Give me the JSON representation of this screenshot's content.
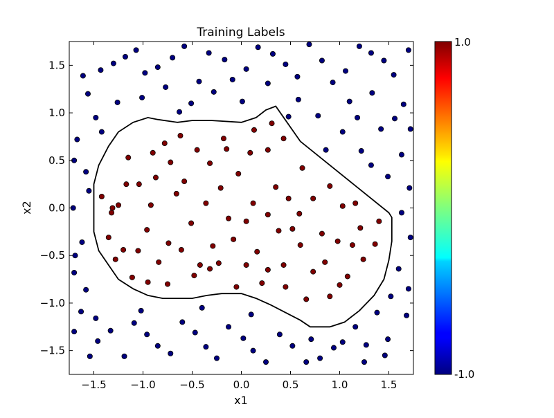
{
  "chart_data": {
    "type": "scatter",
    "title": "Training Labels",
    "xlabel": "x1",
    "ylabel": "x2",
    "xlim": [
      -1.75,
      1.75
    ],
    "ylim": [
      -1.75,
      1.75
    ],
    "xticks": [
      -1.5,
      -1.0,
      -0.5,
      0.0,
      0.5,
      1.0,
      1.5
    ],
    "xtick_labels": [
      "−1.5",
      "−1.0",
      "−0.5",
      "0.0",
      "0.5",
      "1.0",
      "1.5"
    ],
    "yticks": [
      1.5,
      1.0,
      0.5,
      0.0,
      -0.5,
      -1.0,
      -1.5
    ],
    "ytick_labels": [
      "1.5",
      "1.0",
      "0.5",
      "0.0",
      "−0.5",
      "−1.0",
      "−1.5"
    ],
    "grid": false,
    "colorbar": {
      "colormap": "jet",
      "min": -1.0,
      "max": 1.0,
      "min_label": "-1.0",
      "max_label": "1.0"
    },
    "classes": [
      {
        "label_value": 1.0,
        "color": "#800000"
      },
      {
        "label_value": -1.0,
        "color": "#000080"
      }
    ],
    "boundary": [
      [
        -1.5,
        0.05
      ],
      [
        -1.5,
        -0.25
      ],
      [
        -1.45,
        -0.45
      ],
      [
        -1.35,
        -0.6
      ],
      [
        -1.25,
        -0.75
      ],
      [
        -1.1,
        -0.85
      ],
      [
        -0.95,
        -0.92
      ],
      [
        -0.8,
        -0.95
      ],
      [
        -0.5,
        -0.95
      ],
      [
        -0.35,
        -0.92
      ],
      [
        -0.2,
        -0.9
      ],
      [
        0.0,
        -0.9
      ],
      [
        0.15,
        -0.95
      ],
      [
        0.3,
        -1.02
      ],
      [
        0.45,
        -1.1
      ],
      [
        0.6,
        -1.18
      ],
      [
        0.7,
        -1.25
      ],
      [
        0.9,
        -1.25
      ],
      [
        1.05,
        -1.2
      ],
      [
        1.2,
        -1.08
      ],
      [
        1.35,
        -0.92
      ],
      [
        1.45,
        -0.75
      ],
      [
        1.5,
        -0.55
      ],
      [
        1.53,
        -0.35
      ],
      [
        1.53,
        -0.1
      ],
      [
        1.5,
        -0.05
      ],
      [
        0.6,
        0.7
      ],
      [
        0.35,
        1.07
      ],
      [
        0.25,
        1.03
      ],
      [
        0.15,
        0.95
      ],
      [
        0.0,
        0.9
      ],
      [
        -0.3,
        0.92
      ],
      [
        -0.5,
        0.92
      ],
      [
        -0.65,
        0.9
      ],
      [
        -0.85,
        0.93
      ],
      [
        -0.95,
        0.95
      ],
      [
        -1.1,
        0.9
      ],
      [
        -1.25,
        0.8
      ],
      [
        -1.35,
        0.65
      ],
      [
        -1.45,
        0.45
      ],
      [
        -1.5,
        0.25
      ],
      [
        -1.5,
        0.05
      ]
    ],
    "points": [
      [
        -1.31,
        0.0,
        1
      ],
      [
        -1.42,
        0.12,
        1
      ],
      [
        -1.35,
        -0.31,
        1
      ],
      [
        -1.28,
        -0.54,
        1
      ],
      [
        -1.11,
        -0.73,
        1
      ],
      [
        -0.95,
        -0.78,
        1
      ],
      [
        -0.75,
        -0.8,
        1
      ],
      [
        -0.48,
        -0.71,
        1
      ],
      [
        -0.23,
        -0.58,
        1
      ],
      [
        0.05,
        -0.6,
        1
      ],
      [
        0.27,
        -0.65,
        1
      ],
      [
        0.45,
        -0.83,
        1
      ],
      [
        0.66,
        -0.96,
        1
      ],
      [
        0.9,
        -0.93,
        1
      ],
      [
        1.08,
        -0.72,
        1
      ],
      [
        1.24,
        -0.54,
        1
      ],
      [
        1.36,
        -0.38,
        1
      ],
      [
        1.4,
        -0.14,
        1
      ],
      [
        1.16,
        0.05,
        1
      ],
      [
        0.9,
        0.23,
        1
      ],
      [
        0.62,
        0.42,
        1
      ],
      [
        0.43,
        0.73,
        1
      ],
      [
        0.31,
        0.89,
        1
      ],
      [
        0.13,
        0.82,
        1
      ],
      [
        -0.15,
        0.62,
        1
      ],
      [
        -0.45,
        0.61,
        1
      ],
      [
        -0.78,
        0.68,
        1
      ],
      [
        -1.15,
        0.53,
        1
      ],
      [
        -1.04,
        0.25,
        1
      ],
      [
        -0.87,
        0.32,
        1
      ],
      [
        -0.58,
        0.28,
        1
      ],
      [
        -0.36,
        0.05,
        1
      ],
      [
        -0.13,
        -0.11,
        1
      ],
      [
        0.12,
        0.05,
        1
      ],
      [
        0.35,
        0.22,
        1
      ],
      [
        0.59,
        -0.06,
        1
      ],
      [
        0.82,
        -0.27,
        1
      ],
      [
        0.98,
        -0.35,
        1
      ],
      [
        0.6,
        -0.39,
        1
      ],
      [
        0.38,
        -0.24,
        1
      ],
      [
        0.16,
        -0.46,
        1
      ],
      [
        -0.08,
        -0.33,
        1
      ],
      [
        -0.29,
        -0.4,
        1
      ],
      [
        -0.51,
        -0.16,
        1
      ],
      [
        -0.74,
        -0.37,
        1
      ],
      [
        -0.96,
        -0.23,
        1
      ],
      [
        -1.2,
        -0.44,
        1
      ],
      [
        -1.25,
        0.03,
        1
      ],
      [
        -1.17,
        0.25,
        1
      ],
      [
        -0.9,
        0.58,
        1
      ],
      [
        -0.62,
        0.76,
        1
      ],
      [
        -0.32,
        0.47,
        1
      ],
      [
        -0.03,
        0.36,
        1
      ],
      [
        0.27,
        0.61,
        1
      ],
      [
        0.48,
        0.1,
        1
      ],
      [
        0.73,
        0.1,
        1
      ],
      [
        1.03,
        0.02,
        1
      ],
      [
        1.21,
        -0.21,
        1
      ],
      [
        1.13,
        -0.39,
        1
      ],
      [
        0.85,
        -0.57,
        1
      ],
      [
        0.43,
        -0.6,
        1
      ],
      [
        0.21,
        -0.79,
        1
      ],
      [
        -0.05,
        -0.83,
        1
      ],
      [
        -0.42,
        -0.6,
        1
      ],
      [
        -0.61,
        -0.44,
        1
      ],
      [
        -0.84,
        -0.57,
        1
      ],
      [
        -1.05,
        -0.45,
        1
      ],
      [
        -0.92,
        0.03,
        1
      ],
      [
        -0.66,
        0.15,
        1
      ],
      [
        -0.21,
        0.21,
        1
      ],
      [
        0.05,
        -0.14,
        1
      ],
      [
        0.27,
        -0.07,
        1
      ],
      [
        0.52,
        -0.22,
        1
      ],
      [
        0.73,
        -0.67,
        1
      ],
      [
        1.0,
        -0.81,
        1
      ],
      [
        -0.32,
        -0.64,
        1
      ],
      [
        -0.18,
        0.73,
        1
      ],
      [
        0.09,
        0.58,
        1
      ],
      [
        -0.72,
        0.48,
        1
      ],
      [
        -1.32,
        -0.05,
        1
      ],
      [
        -1.56,
        1.2,
        -1
      ],
      [
        -1.43,
        1.45,
        -1
      ],
      [
        -1.18,
        1.59,
        -1
      ],
      [
        -0.98,
        1.42,
        -1
      ],
      [
        -0.7,
        1.58,
        -1
      ],
      [
        -0.43,
        1.33,
        -1
      ],
      [
        -0.17,
        1.56,
        -1
      ],
      [
        0.05,
        1.46,
        -1
      ],
      [
        0.32,
        1.62,
        -1
      ],
      [
        0.57,
        1.38,
        -1
      ],
      [
        0.82,
        1.55,
        -1
      ],
      [
        1.06,
        1.44,
        -1
      ],
      [
        1.32,
        1.63,
        -1
      ],
      [
        1.55,
        1.4,
        -1
      ],
      [
        1.65,
        1.09,
        -1
      ],
      [
        1.42,
        0.83,
        -1
      ],
      [
        1.22,
        0.6,
        -1
      ],
      [
        1.63,
        0.56,
        -1
      ],
      [
        1.71,
        0.21,
        -1
      ],
      [
        1.63,
        -0.05,
        -1
      ],
      [
        1.72,
        -0.31,
        -1
      ],
      [
        1.6,
        -0.64,
        -1
      ],
      [
        1.52,
        -0.93,
        -1
      ],
      [
        1.68,
        -1.13,
        -1
      ],
      [
        1.49,
        -1.38,
        -1
      ],
      [
        1.25,
        -1.62,
        -1
      ],
      [
        1.03,
        -1.41,
        -1
      ],
      [
        0.8,
        -1.58,
        -1
      ],
      [
        0.52,
        -1.45,
        -1
      ],
      [
        0.25,
        -1.62,
        -1
      ],
      [
        0.02,
        -1.37,
        -1
      ],
      [
        -0.25,
        -1.58,
        -1
      ],
      [
        -0.47,
        -1.31,
        -1
      ],
      [
        -0.72,
        -1.53,
        -1
      ],
      [
        -0.96,
        -1.33,
        -1
      ],
      [
        -1.19,
        -1.56,
        -1
      ],
      [
        -1.46,
        -1.4,
        -1
      ],
      [
        -1.63,
        -1.09,
        -1
      ],
      [
        -1.7,
        -0.68,
        -1
      ],
      [
        -1.62,
        -0.36,
        -1
      ],
      [
        -1.71,
        0.0,
        -1
      ],
      [
        -1.58,
        0.38,
        -1
      ],
      [
        -1.67,
        0.72,
        -1
      ],
      [
        -1.48,
        0.95,
        -1
      ],
      [
        -1.26,
        1.11,
        -1
      ],
      [
        -1.01,
        1.16,
        -1
      ],
      [
        -0.77,
        1.27,
        -1
      ],
      [
        -0.51,
        1.1,
        -1
      ],
      [
        -0.28,
        1.22,
        -1
      ],
      [
        0.01,
        1.12,
        -1
      ],
      [
        0.27,
        1.31,
        -1
      ],
      [
        0.58,
        1.14,
        -1
      ],
      [
        0.78,
        0.97,
        -1
      ],
      [
        1.03,
        0.8,
        -1
      ],
      [
        0.86,
        0.61,
        -1
      ],
      [
        1.1,
        1.12,
        -1
      ],
      [
        1.33,
        1.21,
        -1
      ],
      [
        1.56,
        0.94,
        -1
      ],
      [
        1.49,
        0.33,
        -1
      ],
      [
        1.38,
        -1.1,
        -1
      ],
      [
        1.16,
        -1.25,
        -1
      ],
      [
        0.94,
        -1.47,
        -1
      ],
      [
        0.66,
        -1.62,
        -1
      ],
      [
        0.39,
        -1.33,
        -1
      ],
      [
        0.12,
        -1.5,
        -1
      ],
      [
        -0.13,
        -1.25,
        -1
      ],
      [
        -0.36,
        -1.46,
        -1
      ],
      [
        -0.6,
        -1.2,
        -1
      ],
      [
        -0.85,
        -1.45,
        -1
      ],
      [
        -1.09,
        -1.21,
        -1
      ],
      [
        -1.33,
        -1.29,
        -1
      ],
      [
        -1.54,
        -1.56,
        -1
      ],
      [
        -1.7,
        -1.3,
        -1
      ],
      [
        -1.58,
        -0.86,
        -1
      ],
      [
        -1.69,
        -0.5,
        -1
      ],
      [
        -1.55,
        0.18,
        -1
      ],
      [
        -1.7,
        0.5,
        -1
      ],
      [
        -1.61,
        1.39,
        -1
      ],
      [
        -1.3,
        1.52,
        -1
      ],
      [
        -1.07,
        1.66,
        -1
      ],
      [
        -0.85,
        1.48,
        -1
      ],
      [
        -0.58,
        1.7,
        -1
      ],
      [
        -0.33,
        1.63,
        -1
      ],
      [
        -0.09,
        1.35,
        -1
      ],
      [
        0.17,
        1.69,
        -1
      ],
      [
        0.45,
        1.51,
        -1
      ],
      [
        0.69,
        1.72,
        -1
      ],
      [
        0.93,
        1.32,
        -1
      ],
      [
        1.2,
        1.7,
        -1
      ],
      [
        1.45,
        1.55,
        -1
      ],
      [
        1.7,
        1.66,
        -1
      ],
      [
        1.72,
        0.83,
        -1
      ],
      [
        1.32,
        0.45,
        -1
      ],
      [
        1.7,
        -0.85,
        -1
      ],
      [
        1.27,
        -1.44,
        -1
      ],
      [
        -1.42,
        0.8,
        -1
      ],
      [
        -0.63,
        1.01,
        -1
      ],
      [
        0.48,
        0.96,
        -1
      ],
      [
        1.18,
        0.95,
        -1
      ],
      [
        -0.4,
        -1.05,
        -1
      ],
      [
        0.1,
        -1.12,
        -1
      ],
      [
        -1.02,
        -1.08,
        -1
      ],
      [
        1.46,
        -1.55,
        -1
      ],
      [
        -1.48,
        -1.16,
        -1
      ],
      [
        0.71,
        -1.38,
        -1
      ]
    ]
  }
}
